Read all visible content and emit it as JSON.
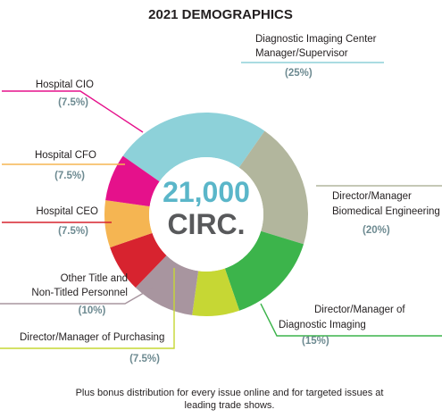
{
  "chart_data": {
    "type": "pie",
    "title": "2021 DEMOGRAPHICS",
    "center": {
      "value": "21,000",
      "unit": "CIRC."
    },
    "slices": [
      {
        "label_lines": [
          "Diagnostic Imaging Center",
          "Manager/Supervisor"
        ],
        "pct_label": "(25%)",
        "value": 25,
        "color": "#8dd1d9"
      },
      {
        "label_lines": [
          "Director/Manager",
          "Biomedical Engineering"
        ],
        "pct_label": "(20%)",
        "value": 20,
        "color": "#b2b69d"
      },
      {
        "label_lines": [
          "Director/Manager of",
          "Diagnostic Imaging"
        ],
        "pct_label": "(15%)",
        "value": 15,
        "color": "#3cb44b"
      },
      {
        "label_lines": [
          "Director/Manager of Purchasing"
        ],
        "pct_label": "(7.5%)",
        "value": 7.5,
        "color": "#c6d734"
      },
      {
        "label_lines": [
          "Other Title and",
          "Non-Titled Personnel"
        ],
        "pct_label": "(10%)",
        "value": 10,
        "color": "#a8959f"
      },
      {
        "label_lines": [
          "Hospital CEO"
        ],
        "pct_label": "(7.5%)",
        "value": 7.5,
        "color": "#d7232f"
      },
      {
        "label_lines": [
          "Hospital CFO"
        ],
        "pct_label": "(7.5%)",
        "value": 7.5,
        "color": "#f5b552"
      },
      {
        "label_lines": [
          "Hospital CIO"
        ],
        "pct_label": "(7.5%)",
        "value": 7.5,
        "color": "#e5118b"
      }
    ],
    "footnote_lines": [
      "Plus bonus distribution for every issue online and for targeted issues at",
      "leading trade shows."
    ]
  }
}
